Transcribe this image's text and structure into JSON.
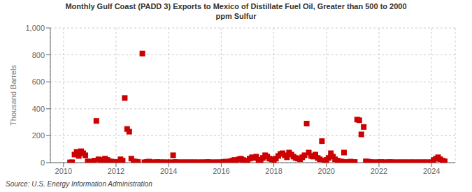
{
  "chart_data": {
    "type": "scatter",
    "title": "Monthly Gulf Coast (PADD 3) Exports to Mexico of Distillate Fuel Oil, Greater than 500 to 2000\nppm Sulfur",
    "ylabel": "Thousand Barrels",
    "annotations": [
      "Source: U.S. Energy Information Administration"
    ],
    "color": "#cc0000",
    "marker": "square",
    "grid": true,
    "xlim": [
      2009.5,
      2024.9
    ],
    "xticks": [
      2010,
      2012,
      2014,
      2016,
      2018,
      2020,
      2022,
      2024
    ],
    "ylim": [
      0,
      1000
    ],
    "yticks": [
      0,
      200,
      400,
      600,
      800,
      {
        "value": 1000,
        "label": "1,000"
      }
    ],
    "x": [
      2010.25,
      2010.33,
      2010.42,
      2010.5,
      2010.58,
      2010.67,
      2010.75,
      2010.83,
      2010.92,
      2011.0,
      2011.08,
      2011.17,
      2011.25,
      2011.33,
      2011.42,
      2011.5,
      2011.58,
      2011.67,
      2011.75,
      2011.83,
      2011.92,
      2012.0,
      2012.08,
      2012.17,
      2012.25,
      2012.33,
      2012.42,
      2012.5,
      2012.58,
      2012.67,
      2012.75,
      2012.83,
      2013.0,
      2013.08,
      2013.17,
      2013.25,
      2013.33,
      2013.42,
      2013.5,
      2013.58,
      2013.67,
      2013.75,
      2013.83,
      2013.92,
      2014.0,
      2014.08,
      2014.17,
      2014.25,
      2014.33,
      2014.42,
      2014.5,
      2014.58,
      2014.67,
      2014.75,
      2014.83,
      2014.92,
      2015.0,
      2015.08,
      2015.17,
      2015.25,
      2015.33,
      2015.42,
      2015.5,
      2015.58,
      2015.67,
      2015.75,
      2015.83,
      2015.92,
      2016.0,
      2016.08,
      2016.17,
      2016.25,
      2016.33,
      2016.42,
      2016.5,
      2016.58,
      2016.67,
      2016.75,
      2016.83,
      2016.92,
      2017.0,
      2017.08,
      2017.17,
      2017.25,
      2017.33,
      2017.42,
      2017.5,
      2017.58,
      2017.67,
      2017.75,
      2017.83,
      2017.92,
      2018.0,
      2018.08,
      2018.17,
      2018.25,
      2018.33,
      2018.42,
      2018.5,
      2018.58,
      2018.67,
      2018.75,
      2018.83,
      2018.92,
      2019.0,
      2019.08,
      2019.17,
      2019.25,
      2019.33,
      2019.42,
      2019.5,
      2019.58,
      2019.67,
      2019.75,
      2019.83,
      2019.92,
      2020.0,
      2020.08,
      2020.17,
      2020.25,
      2020.33,
      2020.42,
      2020.5,
      2020.58,
      2020.67,
      2020.75,
      2020.83,
      2020.92,
      2021.0,
      2021.08,
      2021.17,
      2021.25,
      2021.33,
      2021.42,
      2021.5,
      2021.58,
      2021.67,
      2021.75,
      2021.83,
      2021.92,
      2022.0,
      2022.08,
      2022.17,
      2022.25,
      2022.33,
      2022.42,
      2022.5,
      2022.58,
      2022.67,
      2022.75,
      2022.83,
      2022.92,
      2023.0,
      2023.08,
      2023.17,
      2023.25,
      2023.33,
      2023.42,
      2023.5,
      2023.58,
      2023.67,
      2023.75,
      2023.83,
      2023.92,
      2024.0,
      2024.08,
      2024.17,
      2024.25,
      2024.33,
      2024.42,
      2024.5
    ],
    "values": [
      2,
      3,
      60,
      80,
      50,
      85,
      70,
      55,
      10,
      5,
      8,
      15,
      310,
      25,
      20,
      15,
      30,
      20,
      10,
      8,
      5,
      2,
      5,
      25,
      15,
      480,
      250,
      230,
      30,
      10,
      8,
      5,
      810,
      3,
      5,
      8,
      3,
      2,
      3,
      5,
      3,
      2,
      3,
      2,
      2,
      3,
      55,
      5,
      3,
      2,
      3,
      2,
      3,
      2,
      3,
      2,
      3,
      2,
      2,
      3,
      2,
      3,
      5,
      3,
      2,
      2,
      3,
      2,
      3,
      5,
      8,
      3,
      10,
      15,
      20,
      15,
      25,
      30,
      20,
      15,
      10,
      30,
      40,
      35,
      45,
      20,
      20,
      35,
      55,
      45,
      30,
      25,
      20,
      30,
      50,
      65,
      70,
      55,
      40,
      75,
      60,
      45,
      35,
      30,
      25,
      40,
      55,
      290,
      75,
      50,
      45,
      60,
      35,
      25,
      160,
      15,
      20,
      35,
      70,
      45,
      25,
      15,
      10,
      8,
      75,
      5,
      3,
      8,
      3,
      5,
      320,
      315,
      210,
      265,
      10,
      8,
      5,
      3,
      2,
      3,
      3,
      5,
      3,
      2,
      3,
      5,
      3,
      2,
      3,
      2,
      3,
      2,
      3,
      2,
      3,
      2,
      3,
      2,
      3,
      2,
      3,
      2,
      3,
      2,
      3,
      20,
      30,
      40,
      25,
      15,
      10
    ]
  }
}
